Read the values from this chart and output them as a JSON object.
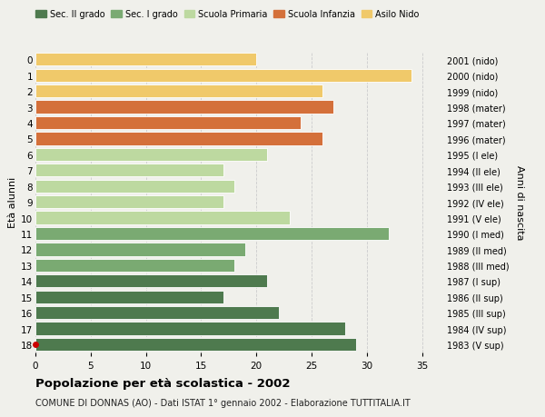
{
  "ages": [
    18,
    17,
    16,
    15,
    14,
    13,
    12,
    11,
    10,
    9,
    8,
    7,
    6,
    5,
    4,
    3,
    2,
    1,
    0
  ],
  "values": [
    29,
    28,
    22,
    17,
    21,
    18,
    19,
    32,
    23,
    17,
    18,
    17,
    21,
    26,
    24,
    27,
    26,
    34,
    20
  ],
  "right_labels": [
    "1983 (V sup)",
    "1984 (IV sup)",
    "1985 (III sup)",
    "1986 (II sup)",
    "1987 (I sup)",
    "1988 (III med)",
    "1989 (II med)",
    "1990 (I med)",
    "1991 (V ele)",
    "1992 (IV ele)",
    "1993 (III ele)",
    "1994 (II ele)",
    "1995 (I ele)",
    "1996 (mater)",
    "1997 (mater)",
    "1998 (mater)",
    "1999 (nido)",
    "2000 (nido)",
    "2001 (nido)"
  ],
  "colors": [
    "#4e7a4e",
    "#4e7a4e",
    "#4e7a4e",
    "#4e7a4e",
    "#4e7a4e",
    "#7aaa72",
    "#7aaa72",
    "#7aaa72",
    "#bdd9a0",
    "#bdd9a0",
    "#bdd9a0",
    "#bdd9a0",
    "#bdd9a0",
    "#d4703a",
    "#d4703a",
    "#d4703a",
    "#f0c96a",
    "#f0c96a",
    "#f0c96a"
  ],
  "legend_labels": [
    "Sec. II grado",
    "Sec. I grado",
    "Scuola Primaria",
    "Scuola Infanzia",
    "Asilo Nido"
  ],
  "legend_colors": [
    "#4e7a4e",
    "#7aaa72",
    "#bdd9a0",
    "#d4703a",
    "#f0c96a"
  ],
  "ylabel_left": "Età alunni",
  "ylabel_right": "Anni di nascita",
  "title": "Popolazione per età scolastica - 2002",
  "subtitle": "COMUNE DI DONNAS (AO) - Dati ISTAT 1° gennaio 2002 - Elaborazione TUTTITALIA.IT",
  "xlim": [
    0,
    37
  ],
  "ylim_min": -0.5,
  "ylim_max": 18.5,
  "background_color": "#f0f0eb",
  "dot_color": "#cc0000"
}
